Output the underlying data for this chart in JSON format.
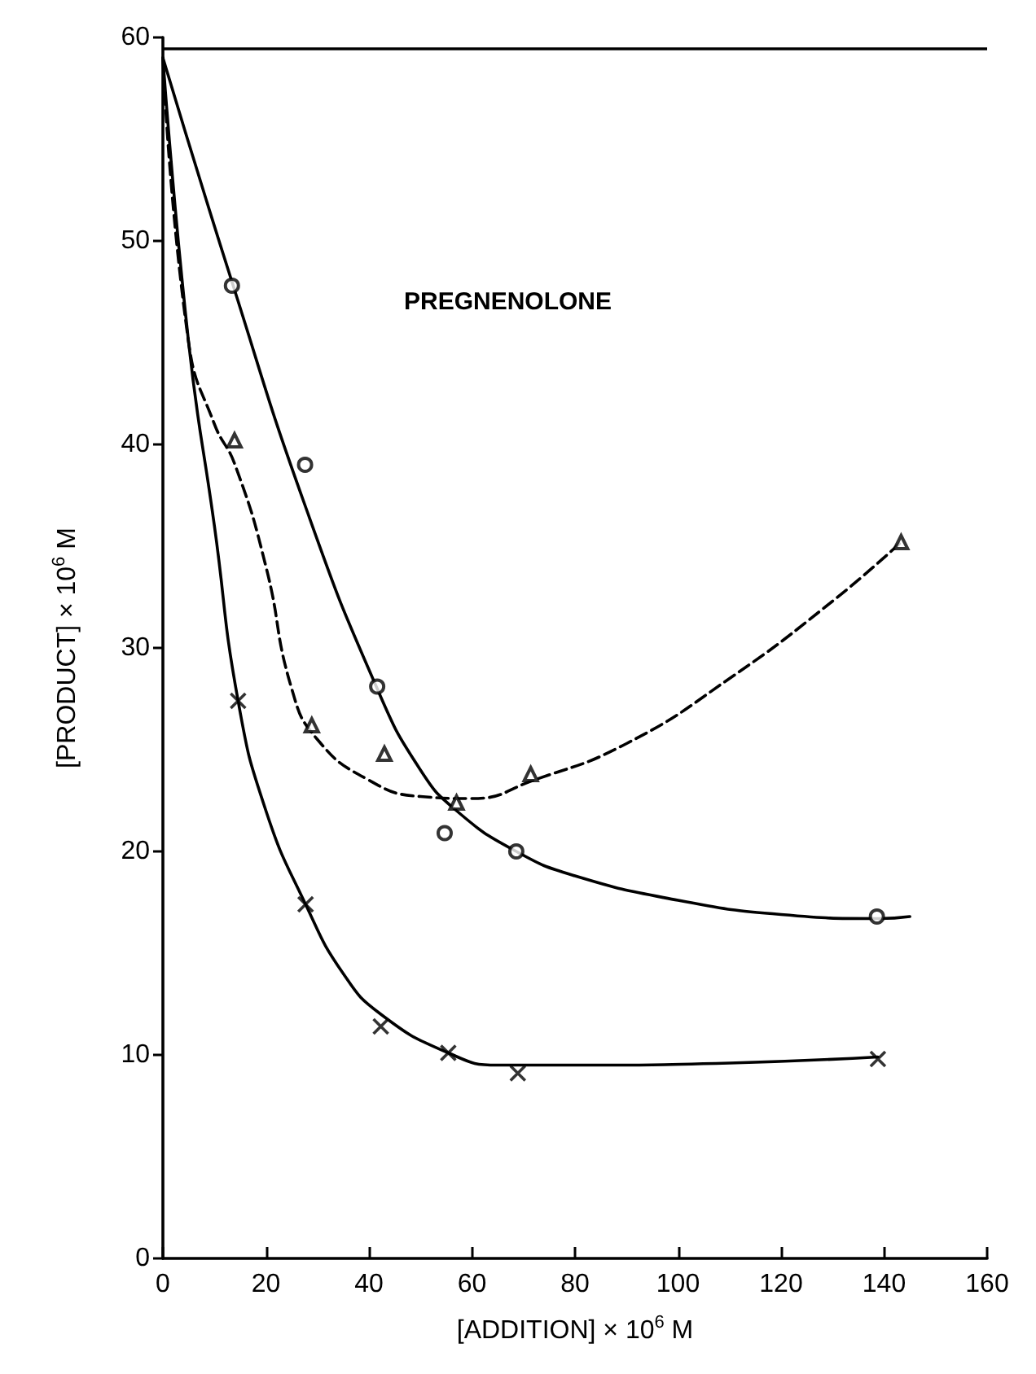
{
  "chart_data": {
    "type": "scatter",
    "xlabel": "[ADDITION] × 10$^{6}$ M",
    "ylabel": "[PRODUCT] × 10$^{6}$ M",
    "annotations": [
      "PREGNENOLONE"
    ],
    "xlim": [
      0,
      160
    ],
    "xticks": [
      0,
      20,
      40,
      60,
      80,
      100,
      120,
      140,
      160
    ],
    "ylim": [
      0,
      60
    ],
    "yticks": [
      0,
      10,
      20,
      30,
      40,
      50,
      60
    ],
    "grid": false,
    "ref_lines": [
      {
        "axis": "y",
        "value": 59.5,
        "color": "#000000",
        "line_style": "solid"
      }
    ],
    "series": [
      {
        "marker": "circle",
        "color": "#000000",
        "x": [
          13.4,
          27.6,
          41.6,
          54.7,
          68.6,
          138.6
        ],
        "values": [
          47.8,
          39.0,
          28.1,
          20.9,
          20.0,
          16.8
        ]
      },
      {
        "marker": "triangle",
        "color": "#000000",
        "x": [
          13.9,
          28.9,
          43.0,
          57.0,
          71.4,
          143.3
        ],
        "values": [
          40.2,
          26.2,
          24.8,
          22.4,
          23.8,
          35.2
        ]
      },
      {
        "marker": "cross",
        "color": "#000000",
        "x": [
          14.6,
          27.7,
          42.3,
          55.4,
          68.9,
          138.8
        ],
        "values": [
          27.4,
          17.4,
          11.4,
          10.1,
          9.1,
          9.8
        ]
      },
      {
        "type": "line",
        "marker": "none",
        "line_style": "solid",
        "color": "#000000",
        "x": [
          0,
          13.4,
          27.6,
          41.6,
          50,
          57,
          68.6,
          80,
          100,
          120,
          139,
          145
        ],
        "values": [
          59,
          48,
          37,
          28,
          24,
          22,
          20,
          18.8,
          17.6,
          16.9,
          16.7,
          16.8
        ]
      },
      {
        "type": "line",
        "marker": "none",
        "line_style": "dashed",
        "color": "#000000",
        "x": [
          0,
          5,
          10,
          14,
          20,
          25,
          30,
          40,
          50,
          60,
          72,
          90,
          110,
          130,
          143.3
        ],
        "values": [
          59,
          45,
          41,
          39,
          34,
          28,
          25.5,
          23.5,
          22.7,
          22.6,
          23.5,
          25.3,
          28.5,
          32.3,
          35.2
        ]
      },
      {
        "type": "line",
        "marker": "none",
        "line_style": "solid",
        "color": "#000000",
        "x": [
          0,
          5,
          10,
          14.6,
          20,
          27.7,
          35,
          42.3,
          55.4,
          65,
          80,
          110,
          138.8
        ],
        "values": [
          59,
          45,
          36,
          27.4,
          22,
          17.4,
          14,
          12,
          10.1,
          9.5,
          9.5,
          9.6,
          9.9
        ]
      }
    ]
  }
}
